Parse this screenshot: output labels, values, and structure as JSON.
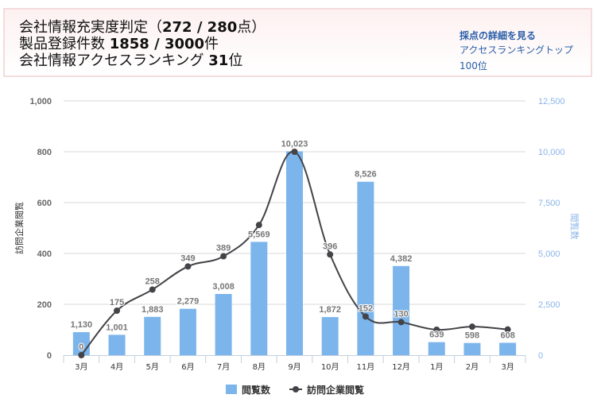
{
  "summary": {
    "line1_prefix": "会社情報充実度判定（",
    "line1_value": "272 / 280",
    "line1_suffix": "点）",
    "line2_prefix": "製品登録件数 ",
    "line2_value": "1858 / 3000",
    "line2_suffix": "件",
    "line3_prefix": "会社情報アクセスランキング ",
    "line3_value": "31",
    "line3_suffix": "位"
  },
  "links": {
    "score_details": "採点の詳細を見る",
    "ranking_top100": "アクセスランキングトップ100位"
  },
  "colors": {
    "bar": "#7cb5ec",
    "line": "#434348",
    "right_axis": "#8ab4e8",
    "grid": "#d8d8d8"
  },
  "chart_data": {
    "type": "bar",
    "categories": [
      "3月",
      "4月",
      "5月",
      "6月",
      "7月",
      "8月",
      "9月",
      "10月",
      "11月",
      "12月",
      "1月",
      "2月",
      "3月"
    ],
    "series": [
      {
        "name": "閲覧数",
        "type": "bar",
        "axis": "right",
        "values": [
          1130,
          1001,
          1883,
          2279,
          3008,
          5569,
          10023,
          1872,
          8526,
          4382,
          639,
          598,
          608
        ],
        "labels": [
          "1,130",
          "1,001",
          "1,883",
          "2,279",
          "3,008",
          "5,569",
          "10,023",
          "1,872",
          "8,526",
          "4,382",
          "639",
          "598",
          "608"
        ]
      },
      {
        "name": "訪問企業閲覧",
        "type": "line",
        "axis": "left",
        "values": [
          0,
          175,
          258,
          349,
          389,
          512,
          800,
          396,
          152,
          130,
          100,
          112,
          101
        ],
        "labels": [
          "0",
          "175",
          "258",
          "349",
          "389",
          "",
          "",
          "396",
          "152",
          "130",
          "",
          "",
          ""
        ]
      }
    ],
    "left_axis": {
      "title": "訪問企業閲覧",
      "ylim": [
        0,
        1000
      ],
      "ticks": [
        "0",
        "200",
        "400",
        "600",
        "800",
        "1,000"
      ],
      "tick_values": [
        0,
        200,
        400,
        600,
        800,
        1000
      ]
    },
    "right_axis": {
      "title": "閲覧数",
      "ylim": [
        0,
        12500
      ],
      "ticks": [
        "0",
        "2,500",
        "5,000",
        "7,500",
        "10,000",
        "12,500"
      ],
      "tick_values": [
        0,
        2500,
        5000,
        7500,
        10000,
        12500
      ]
    },
    "grid": true,
    "legend_position": "bottom",
    "legend": [
      "閲覧数",
      "訪問企業閲覧"
    ]
  }
}
